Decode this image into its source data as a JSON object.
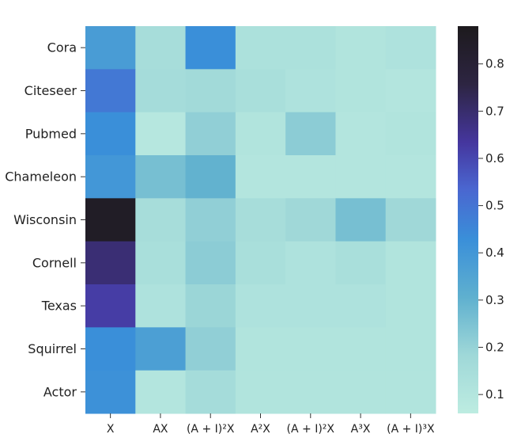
{
  "chart_data": {
    "type": "heatmap",
    "rows": [
      "Cora",
      "Citeseer",
      "Pubmed",
      "Chameleon",
      "Wisconsin",
      "Cornell",
      "Texas",
      "Squirrel",
      "Actor"
    ],
    "columns": [
      "X",
      "AX",
      "(A + I)²X",
      "A²X",
      "(A + I)²X",
      "A³X",
      "(A + I)³X"
    ],
    "values": [
      [
        0.38,
        0.15,
        0.43,
        0.13,
        0.13,
        0.11,
        0.12
      ],
      [
        0.49,
        0.16,
        0.17,
        0.14,
        0.12,
        0.11,
        0.1
      ],
      [
        0.43,
        0.09,
        0.21,
        0.11,
        0.22,
        0.1,
        0.11
      ],
      [
        0.4,
        0.26,
        0.3,
        0.1,
        0.1,
        0.1,
        0.1
      ],
      [
        0.85,
        0.15,
        0.21,
        0.15,
        0.18,
        0.26,
        0.18
      ],
      [
        0.69,
        0.14,
        0.22,
        0.14,
        0.12,
        0.14,
        0.11
      ],
      [
        0.62,
        0.12,
        0.19,
        0.12,
        0.12,
        0.12,
        0.11
      ],
      [
        0.43,
        0.37,
        0.21,
        0.11,
        0.11,
        0.11,
        0.11
      ],
      [
        0.42,
        0.1,
        0.16,
        0.11,
        0.11,
        0.11,
        0.11
      ]
    ],
    "colorbar": {
      "range": [
        0.06,
        0.88
      ],
      "ticks": [
        0.1,
        0.2,
        0.3,
        0.4,
        0.5,
        0.6,
        0.7,
        0.8
      ]
    },
    "colormap": [
      [
        0.0,
        "#bdece1"
      ],
      [
        0.15,
        "#9fd8d8"
      ],
      [
        0.3,
        "#5fb0cf"
      ],
      [
        0.45,
        "#3a8fd9"
      ],
      [
        0.58,
        "#4a66d0"
      ],
      [
        0.7,
        "#45369e"
      ],
      [
        0.85,
        "#2d2542"
      ],
      [
        1.0,
        "#1d1a1d"
      ]
    ]
  }
}
